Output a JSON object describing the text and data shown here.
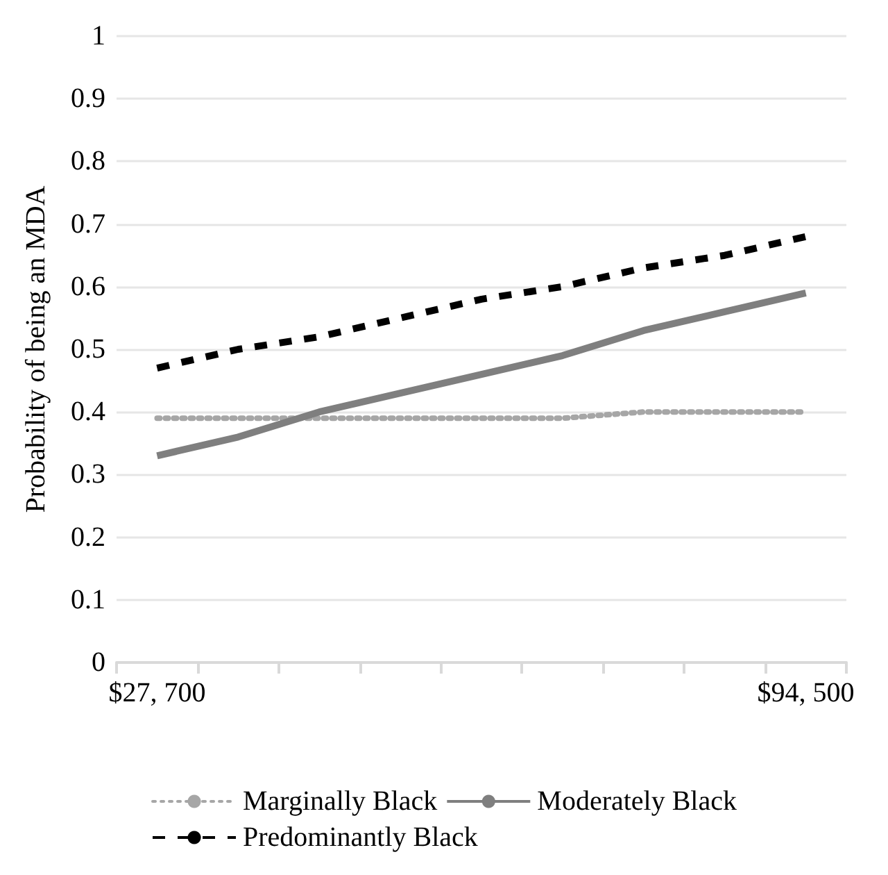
{
  "chart_data": {
    "type": "line",
    "ylabel": "Probability of being an MDA",
    "categories": [
      "$27, 700",
      null,
      null,
      null,
      null,
      null,
      null,
      null,
      "$94, 500"
    ],
    "series": [
      {
        "name": "Marginally Black",
        "color": "#a6a6a6",
        "line_style": "dotted",
        "values": [
          0.39,
          0.39,
          0.39,
          0.39,
          0.39,
          0.39,
          0.4,
          0.4,
          0.4
        ]
      },
      {
        "name": "Moderately Black",
        "color": "#7f7f7f",
        "line_style": "solid",
        "values": [
          0.33,
          0.36,
          0.4,
          0.43,
          0.46,
          0.49,
          0.53,
          0.56,
          0.59
        ]
      },
      {
        "name": "Predominantly Black",
        "color": "#000000",
        "line_style": "dashed",
        "values": [
          0.47,
          0.5,
          0.52,
          0.55,
          0.58,
          0.6,
          0.63,
          0.65,
          0.68
        ]
      }
    ],
    "ylim": [
      0,
      1
    ],
    "yticks": [
      0,
      0.1,
      0.2,
      0.3,
      0.4,
      0.5,
      0.6,
      0.7,
      0.8,
      0.9,
      1
    ],
    "grid": "y",
    "legend": "bottom",
    "marker": "none"
  }
}
